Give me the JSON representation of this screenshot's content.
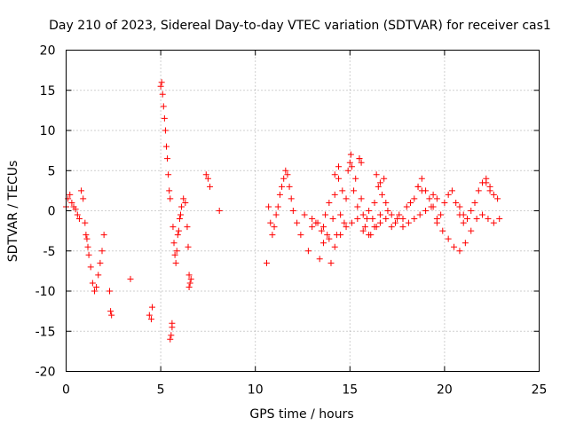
{
  "chart_data": {
    "type": "scatter",
    "title": "Day 210 of 2023, Sidereal Day-to-day VTEC variation (SDTVAR) for receiver cas1",
    "xlabel": "GPS time / hours",
    "ylabel": "SDTVAR / TECUs",
    "xlim": [
      0,
      25
    ],
    "ylim": [
      -20,
      20
    ],
    "x_ticks": [
      0,
      5,
      10,
      15,
      20,
      25
    ],
    "x_tick_labels": [
      "0",
      "5",
      "10",
      "15",
      "20",
      "25"
    ],
    "y_ticks": [
      -20,
      -15,
      -10,
      -5,
      0,
      5,
      10,
      15,
      20
    ],
    "y_tick_labels": [
      "-20",
      "-15",
      "-10",
      "-5",
      "0",
      "5",
      "10",
      "15",
      "20"
    ],
    "grid": true,
    "marker": "+",
    "color": "#ff0000",
    "series": [
      {
        "name": "SDTVAR",
        "x": [
          0.0,
          0.1,
          0.2,
          0.3,
          0.4,
          0.5,
          0.6,
          0.7,
          0.8,
          0.9,
          1.0,
          1.05,
          1.1,
          1.15,
          1.2,
          1.3,
          1.4,
          1.5,
          1.6,
          1.7,
          1.8,
          1.9,
          2.0,
          2.3,
          2.35,
          2.4,
          3.4,
          4.4,
          4.5,
          4.55,
          5.0,
          5.05,
          5.1,
          5.15,
          5.2,
          5.25,
          5.3,
          5.35,
          5.4,
          5.45,
          5.5,
          5.5,
          5.55,
          5.6,
          5.6,
          5.65,
          5.7,
          5.75,
          5.8,
          5.85,
          5.9,
          5.95,
          6.0,
          6.05,
          6.1,
          6.2,
          6.3,
          6.4,
          6.45,
          6.5,
          6.5,
          6.55,
          6.6,
          7.4,
          7.5,
          7.6,
          8.1,
          10.6,
          10.7,
          10.8,
          10.9,
          11.0,
          11.1,
          11.2,
          11.3,
          11.4,
          11.5,
          11.6,
          11.7,
          11.8,
          11.9,
          12.0,
          12.2,
          12.4,
          12.6,
          12.8,
          13.0,
          13.2,
          13.4,
          13.5,
          13.6,
          13.7,
          13.8,
          13.9,
          14.0,
          14.1,
          14.2,
          14.3,
          14.4,
          14.5,
          14.6,
          14.7,
          14.8,
          14.9,
          15.0,
          15.05,
          15.1,
          15.2,
          15.3,
          15.4,
          15.5,
          15.6,
          15.7,
          15.8,
          15.9,
          16.0,
          16.1,
          16.2,
          16.3,
          16.4,
          16.5,
          16.6,
          16.7,
          16.8,
          16.9,
          17.0,
          17.2,
          17.4,
          17.6,
          17.8,
          18.0,
          18.2,
          18.4,
          18.6,
          18.8,
          19.0,
          19.2,
          19.4,
          19.6,
          19.8,
          20.0,
          20.2,
          20.4,
          20.6,
          20.8,
          21.0,
          21.2,
          21.4,
          21.6,
          21.8,
          22.0,
          22.2,
          22.4,
          22.6,
          22.8,
          13.0,
          13.3,
          13.6,
          13.9,
          14.2,
          14.5,
          14.8,
          15.1,
          15.4,
          15.7,
          16.0,
          16.3,
          16.6,
          16.9,
          17.2,
          17.5,
          17.8,
          18.1,
          18.4,
          18.7,
          19.0,
          19.3,
          19.6,
          19.9,
          20.2,
          20.5,
          20.8,
          21.1,
          21.4,
          21.7,
          22.0,
          22.3,
          22.6,
          22.9,
          14.2,
          14.4,
          15.5,
          15.6,
          16.4,
          16.6,
          18.6,
          18.8,
          19.4,
          19.6,
          20.8,
          21.0,
          22.2,
          22.4
        ],
        "y": [
          0.5,
          1.5,
          2.0,
          1.0,
          0.5,
          0.2,
          -0.5,
          -1.0,
          2.5,
          1.5,
          -1.5,
          -3.0,
          -3.5,
          -4.5,
          -5.5,
          -7.0,
          -9.0,
          -10.0,
          -9.5,
          -8.0,
          -6.5,
          -5.0,
          -3.0,
          -10.0,
          -12.5,
          -13.0,
          -8.5,
          -13.0,
          -13.5,
          -12.0,
          15.5,
          16.0,
          14.5,
          13.0,
          11.5,
          10.0,
          8.0,
          6.5,
          4.5,
          2.5,
          1.5,
          -16.0,
          -15.5,
          -14.5,
          -14.0,
          -2.0,
          -4.0,
          -5.5,
          -6.5,
          -5.0,
          -3.0,
          -2.5,
          -1.0,
          -0.5,
          0.5,
          1.5,
          1.0,
          -2.0,
          -4.5,
          -8.0,
          -9.5,
          -9.0,
          -8.5,
          4.5,
          4.0,
          3.0,
          0.0,
          -6.5,
          0.5,
          -1.5,
          -3.0,
          -2.0,
          -0.5,
          0.5,
          2.0,
          3.0,
          4.0,
          5.0,
          4.5,
          3.0,
          1.5,
          0.0,
          -1.5,
          -3.0,
          -0.5,
          -5.0,
          -2.0,
          -1.5,
          -6.0,
          -2.5,
          -4.0,
          -0.5,
          -3.0,
          1.0,
          -6.5,
          -1.0,
          2.0,
          -3.0,
          4.0,
          -0.5,
          2.5,
          -1.5,
          1.5,
          5.0,
          6.0,
          7.0,
          5.5,
          2.5,
          4.0,
          0.5,
          6.5,
          1.5,
          -0.5,
          -2.0,
          -1.0,
          0.0,
          -3.0,
          -1.0,
          1.0,
          -2.0,
          3.0,
          -0.5,
          2.0,
          4.0,
          1.0,
          0.0,
          -2.0,
          -1.5,
          -0.5,
          -1.0,
          0.5,
          1.0,
          1.5,
          3.0,
          4.0,
          2.5,
          1.5,
          0.5,
          -1.0,
          -0.5,
          1.0,
          2.0,
          2.5,
          1.0,
          -0.5,
          -1.5,
          -1.0,
          0.0,
          1.0,
          2.5,
          3.5,
          4.0,
          3.0,
          2.0,
          1.5,
          -1.0,
          -1.5,
          -2.0,
          -3.5,
          -4.5,
          -3.0,
          -2.0,
          -1.5,
          -1.0,
          -2.5,
          -3.0,
          -2.0,
          -1.5,
          -1.0,
          -0.5,
          -1.0,
          -2.0,
          -1.5,
          -1.0,
          -0.5,
          0.0,
          0.5,
          -1.5,
          -2.5,
          -3.5,
          -4.5,
          -5.0,
          -4.0,
          -2.5,
          -1.0,
          -0.5,
          -1.0,
          -1.5,
          -1.0,
          4.5,
          5.5,
          6.5,
          6.0,
          4.5,
          3.5,
          3.0,
          2.5,
          2.0,
          1.5,
          0.5,
          -0.5,
          3.5,
          2.5
        ]
      }
    ]
  }
}
